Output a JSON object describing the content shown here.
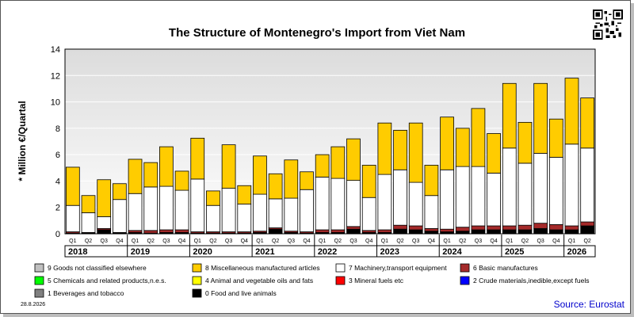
{
  "chart_data": {
    "type": "bar",
    "stacked": true,
    "title": "The Structure of Montenegro's Import from Viet Nam",
    "ylabel": "* Million €/Quartal",
    "ylim": [
      0,
      14
    ],
    "yticks": [
      0,
      2,
      4,
      6,
      8,
      10,
      12,
      14
    ],
    "grid": true,
    "categories": [
      "Q1",
      "Q2",
      "Q3",
      "Q4",
      "Q1",
      "Q2",
      "Q3",
      "Q4",
      "Q1",
      "Q2",
      "Q3",
      "Q4",
      "Q1",
      "Q2",
      "Q3",
      "Q4",
      "Q1",
      "Q2",
      "Q3",
      "Q4",
      "Q1",
      "Q2",
      "Q3",
      "Q4",
      "Q1",
      "Q2",
      "Q3",
      "Q4",
      "Q1",
      "Q2",
      "Q3",
      "Q4",
      "Q1",
      "Q2"
    ],
    "years": [
      "2018",
      "2019",
      "2020",
      "2021",
      "2022",
      "2023",
      "2024",
      "2025",
      "2026"
    ],
    "series": [
      {
        "name": "0 Food and live animals",
        "color": "#000000",
        "values": [
          0.05,
          0.05,
          0.3,
          0.05,
          0.1,
          0.05,
          0.1,
          0.1,
          0.05,
          0.05,
          0.05,
          0.05,
          0.1,
          0.35,
          0.1,
          0.05,
          0.1,
          0.1,
          0.35,
          0.1,
          0.1,
          0.35,
          0.3,
          0.2,
          0.15,
          0.2,
          0.3,
          0.3,
          0.3,
          0.3,
          0.4,
          0.3,
          0.3,
          0.6
        ]
      },
      {
        "name": "1 Beverages and tobacco",
        "color": "#808080",
        "values": [
          0,
          0,
          0,
          0,
          0,
          0,
          0,
          0,
          0,
          0,
          0,
          0,
          0,
          0,
          0,
          0,
          0,
          0,
          0,
          0,
          0,
          0,
          0,
          0,
          0,
          0,
          0,
          0,
          0,
          0,
          0,
          0,
          0,
          0
        ]
      },
      {
        "name": "2 Crude materials,inedible,except fuels",
        "color": "#0000ff",
        "values": [
          0,
          0,
          0,
          0,
          0,
          0,
          0,
          0,
          0,
          0,
          0,
          0,
          0,
          0,
          0,
          0,
          0,
          0,
          0,
          0,
          0,
          0,
          0,
          0,
          0,
          0,
          0,
          0,
          0,
          0,
          0,
          0,
          0,
          0
        ]
      },
      {
        "name": "3 Mineral fuels etc",
        "color": "#ff0000",
        "values": [
          0,
          0,
          0,
          0,
          0,
          0,
          0,
          0,
          0,
          0,
          0,
          0,
          0,
          0,
          0,
          0,
          0,
          0,
          0,
          0,
          0,
          0,
          0,
          0,
          0,
          0,
          0,
          0,
          0,
          0,
          0,
          0,
          0,
          0
        ]
      },
      {
        "name": "4 Animal and vegetable oils and fats",
        "color": "#ffff00",
        "values": [
          0,
          0,
          0,
          0,
          0,
          0,
          0,
          0,
          0,
          0,
          0,
          0,
          0,
          0,
          0,
          0,
          0,
          0,
          0,
          0,
          0,
          0,
          0,
          0,
          0,
          0,
          0,
          0,
          0,
          0,
          0,
          0,
          0,
          0
        ]
      },
      {
        "name": "5 Chemicals and related products,n.e.s.",
        "color": "#00ff00",
        "values": [
          0,
          0,
          0,
          0,
          0,
          0,
          0,
          0,
          0,
          0,
          0,
          0,
          0,
          0,
          0,
          0,
          0,
          0,
          0,
          0,
          0,
          0,
          0,
          0,
          0,
          0,
          0,
          0,
          0,
          0,
          0,
          0,
          0,
          0
        ]
      },
      {
        "name": "6 Basic manufactures",
        "color": "#a52a2a",
        "values": [
          0.1,
          0.05,
          0.1,
          0.05,
          0.15,
          0.2,
          0.2,
          0.2,
          0.1,
          0.1,
          0.1,
          0.1,
          0.1,
          0.1,
          0.1,
          0.1,
          0.2,
          0.2,
          0.2,
          0.15,
          0.2,
          0.3,
          0.3,
          0.2,
          0.2,
          0.3,
          0.3,
          0.3,
          0.3,
          0.35,
          0.4,
          0.4,
          0.3,
          0.3
        ]
      },
      {
        "name": "7 Machinery,transport equipment",
        "color": "#ffffff",
        "values": [
          2.0,
          1.5,
          0.9,
          2.5,
          2.8,
          3.3,
          3.3,
          3.0,
          4.0,
          2.0,
          3.3,
          2.1,
          2.8,
          2.2,
          2.5,
          3.2,
          4.0,
          3.9,
          3.5,
          2.5,
          4.2,
          4.2,
          3.3,
          2.5,
          4.5,
          4.6,
          4.5,
          4.0,
          5.9,
          4.7,
          5.3,
          5.1,
          6.2,
          5.6
        ]
      },
      {
        "name": "8 Miscellaneous manufactured articles",
        "color": "#ffcc00",
        "values": [
          2.9,
          1.3,
          2.8,
          1.2,
          2.6,
          1.85,
          3.0,
          1.45,
          3.1,
          1.1,
          3.3,
          1.4,
          2.9,
          1.9,
          2.9,
          1.35,
          1.7,
          2.4,
          3.15,
          2.45,
          3.9,
          3.0,
          4.5,
          2.3,
          4.0,
          2.9,
          4.4,
          3.0,
          4.9,
          3.1,
          5.3,
          2.9,
          5.0,
          3.8
        ]
      },
      {
        "name": "9 Goods not classified elsewhere",
        "color": "#c0c0c0",
        "values": [
          0,
          0,
          0,
          0,
          0,
          0,
          0,
          0,
          0,
          0,
          0,
          0,
          0,
          0,
          0,
          0,
          0,
          0,
          0,
          0,
          0,
          0,
          0,
          0,
          0,
          0,
          0,
          0,
          0,
          0,
          0,
          0,
          0,
          0
        ]
      }
    ],
    "legend_order": [
      "9 Goods not classified elsewhere",
      "8 Miscellaneous manufactured articles",
      "7 Machinery,transport equipment",
      "6 Basic manufactures",
      "5 Chemicals and related products,n.e.s.",
      "4 Animal and vegetable oils and fats",
      "3 Mineral fuels etc",
      "2 Crude materials,inedible,except fuels",
      "1 Beverages and tobacco",
      "0 Food and live animals"
    ],
    "legend_position": "bottom"
  },
  "footer": {
    "date": "28.8.2026",
    "source": "Source: Eurostat"
  },
  "qr_icon": "qr-code-icon"
}
